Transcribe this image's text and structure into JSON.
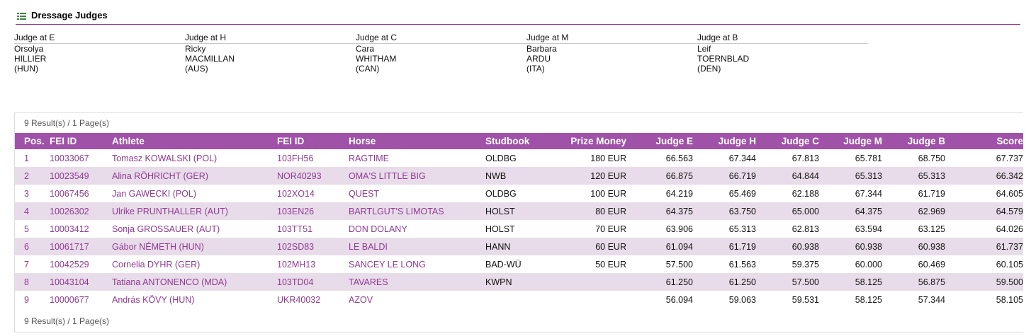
{
  "section": {
    "title": "Dressage Judges",
    "icon": "judges-list-icon"
  },
  "judges": [
    {
      "role": "Judge at E",
      "first": "Orsolya",
      "last": "HILLIER",
      "nat": "(HUN)"
    },
    {
      "role": "Judge at H",
      "first": "Ricky",
      "last": "MACMILLAN",
      "nat": "(AUS)"
    },
    {
      "role": "Judge at C",
      "first": "Cara",
      "last": "WHITHAM",
      "nat": "(CAN)"
    },
    {
      "role": "Judge at M",
      "first": "Barbara",
      "last": "ARDU",
      "nat": "(ITA)"
    },
    {
      "role": "Judge at B",
      "first": "Leif",
      "last": "TOERNBLAD",
      "nat": "(DEN)"
    }
  ],
  "results": {
    "summary_top": "9 Result(s) / 1 Page(s)",
    "summary_bottom": "9 Result(s) / 1 Page(s)",
    "columns": {
      "pos": "Pos.",
      "fei_id": "FEI ID",
      "athlete": "Athlete",
      "horse_fei_id": "FEI ID",
      "horse": "Horse",
      "studbook": "Studbook",
      "prize": "Prize Money",
      "judge_e": "Judge E",
      "judge_h": "Judge H",
      "judge_c": "Judge C",
      "judge_m": "Judge M",
      "judge_b": "Judge B",
      "score": "Score"
    },
    "rows": [
      {
        "pos": "1",
        "fei": "10033067",
        "athlete": "Tomasz KOWALSKI (POL)",
        "hfei": "103FH56",
        "horse": "RAGTIME",
        "studbook": "OLDBG",
        "prize": "180 EUR",
        "e": "66.563",
        "h": "67.344",
        "c": "67.813",
        "m": "65.781",
        "b": "68.750",
        "score": "67.737"
      },
      {
        "pos": "2",
        "fei": "10023549",
        "athlete": "Alina RÖHRICHT (GER)",
        "hfei": "NOR40293",
        "horse": "OMA'S LITTLE BIG",
        "studbook": "NWB",
        "prize": "120 EUR",
        "e": "66.875",
        "h": "66.719",
        "c": "64.844",
        "m": "65.313",
        "b": "65.313",
        "score": "66.342"
      },
      {
        "pos": "3",
        "fei": "10067456",
        "athlete": "Jan GAWECKI (POL)",
        "hfei": "102XO14",
        "horse": "QUEST",
        "studbook": "OLDBG",
        "prize": "100 EUR",
        "e": "64.219",
        "h": "65.469",
        "c": "62.188",
        "m": "67.344",
        "b": "61.719",
        "score": "64.605"
      },
      {
        "pos": "4",
        "fei": "10026302",
        "athlete": "Ulrike PRUNTHALLER (AUT)",
        "hfei": "103EN26",
        "horse": "BARTLGUT'S LIMOTAS",
        "studbook": "HOLST",
        "prize": "80 EUR",
        "e": "64.375",
        "h": "63.750",
        "c": "65.000",
        "m": "64.375",
        "b": "62.969",
        "score": "64.579"
      },
      {
        "pos": "5",
        "fei": "10003412",
        "athlete": "Sonja GROSSAUER (AUT)",
        "hfei": "103TT51",
        "horse": "DON DOLANY",
        "studbook": "HOLST",
        "prize": "70 EUR",
        "e": "63.906",
        "h": "65.313",
        "c": "62.813",
        "m": "63.594",
        "b": "63.125",
        "score": "64.026"
      },
      {
        "pos": "6",
        "fei": "10061717",
        "athlete": "Gábor NÉMETH (HUN)",
        "hfei": "102SD83",
        "horse": "LE BALDI",
        "studbook": "HANN",
        "prize": "60 EUR",
        "e": "61.094",
        "h": "61.719",
        "c": "60.938",
        "m": "60.938",
        "b": "60.938",
        "score": "61.737"
      },
      {
        "pos": "7",
        "fei": "10042529",
        "athlete": "Cornelia DYHR (GER)",
        "hfei": "102MH13",
        "horse": "SANCEY LE LONG",
        "studbook": "BAD-WÜ",
        "prize": "50 EUR",
        "e": "57.500",
        "h": "61.563",
        "c": "59.375",
        "m": "60.000",
        "b": "60.469",
        "score": "60.105"
      },
      {
        "pos": "8",
        "fei": "10043104",
        "athlete": "Tatiana ANTONENCO (MDA)",
        "hfei": "103TD04",
        "horse": "TAVARES",
        "studbook": "KWPN",
        "prize": "",
        "e": "61.250",
        "h": "61.250",
        "c": "57.500",
        "m": "58.125",
        "b": "56.875",
        "score": "59.500"
      },
      {
        "pos": "9",
        "fei": "10000677",
        "athlete": "András KÖVY (HUN)",
        "hfei": "UKR40032",
        "horse": "AZOV",
        "studbook": "",
        "prize": "",
        "e": "56.094",
        "h": "59.063",
        "c": "59.531",
        "m": "58.125",
        "b": "57.344",
        "score": "58.105"
      }
    ]
  }
}
